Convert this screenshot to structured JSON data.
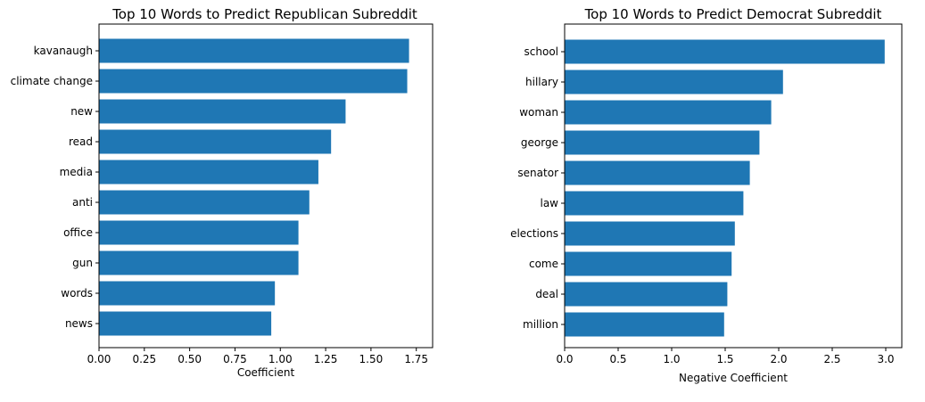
{
  "chart_data": [
    {
      "type": "bar",
      "orientation": "horizontal",
      "title": "Top 10 Words to Predict Republican Subreddit",
      "xlabel": "Coefficient",
      "ylabel": "",
      "categories": [
        "kavanaugh",
        "climate change",
        "new",
        "read",
        "media",
        "anti",
        "office",
        "gun",
        "words",
        "news"
      ],
      "values": [
        1.71,
        1.7,
        1.36,
        1.28,
        1.21,
        1.16,
        1.1,
        1.1,
        0.97,
        0.95
      ],
      "xlim": [
        0,
        1.84
      ],
      "xticks": [
        0,
        0.25,
        0.5,
        0.75,
        1.0,
        1.25,
        1.5,
        1.75
      ],
      "xtick_labels": [
        "0.00",
        "0.25",
        "0.50",
        "0.75",
        "1.00",
        "1.25",
        "1.50",
        "1.75"
      ],
      "color": "#1f77b4",
      "grid": false
    },
    {
      "type": "bar",
      "orientation": "horizontal",
      "title": "Top 10 Words to Predict Democrat Subreddit",
      "xlabel": "Negative Coefficient",
      "ylabel": "",
      "categories": [
        "school",
        "hillary",
        "woman",
        "george",
        "senator",
        "law",
        "elections",
        "come",
        "deal",
        "million"
      ],
      "values": [
        2.99,
        2.04,
        1.93,
        1.82,
        1.73,
        1.67,
        1.59,
        1.56,
        1.52,
        1.49
      ],
      "xlim": [
        0,
        3.15
      ],
      "xticks": [
        0,
        0.5,
        1.0,
        1.5,
        2.0,
        2.5,
        3.0
      ],
      "xtick_labels": [
        "0.0",
        "0.5",
        "1.0",
        "1.5",
        "2.0",
        "2.5",
        "3.0"
      ],
      "color": "#1f77b4",
      "grid": false
    }
  ]
}
